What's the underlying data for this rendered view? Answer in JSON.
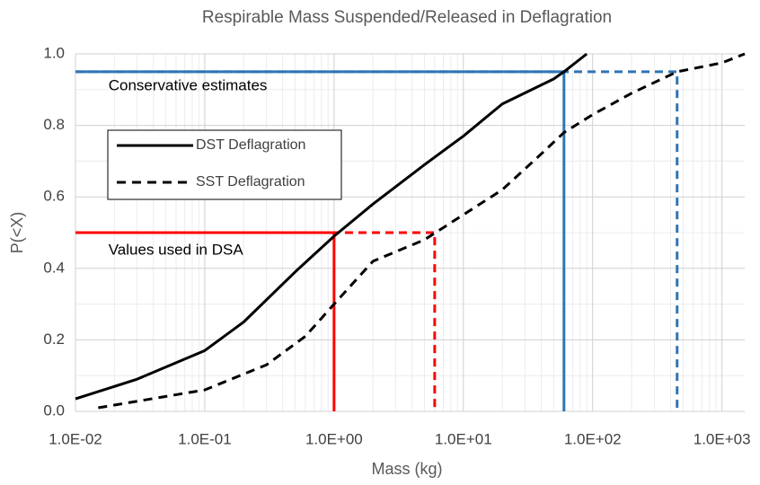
{
  "chart_data": {
    "type": "line",
    "title": "Respirable Mass Suspended/Released in Deflagration",
    "xlabel": "Mass (kg)",
    "ylabel": "P(<X)",
    "xscale": "log",
    "grid": true,
    "xlim": [
      0.01,
      1500
    ],
    "ylim": [
      0,
      1
    ],
    "xticks": [
      {
        "value": 0.01,
        "label": "1.0E-02"
      },
      {
        "value": 0.1,
        "label": "1.0E-01"
      },
      {
        "value": 1,
        "label": "1.0E+00"
      },
      {
        "value": 10,
        "label": "1.0E+01"
      },
      {
        "value": 100,
        "label": "1.0E+02"
      },
      {
        "value": 1000,
        "label": "1.0E+03"
      }
    ],
    "yticks": [
      {
        "value": 0,
        "label": "0.0"
      },
      {
        "value": 0.2,
        "label": "0.2"
      },
      {
        "value": 0.4,
        "label": "0.4"
      },
      {
        "value": 0.6,
        "label": "0.6"
      },
      {
        "value": 0.8,
        "label": "0.8"
      },
      {
        "value": 1,
        "label": "1.0"
      }
    ],
    "series": [
      {
        "name": "DST Deflagration",
        "color": "#000000",
        "style": "solid",
        "x": [
          0.01,
          0.03,
          0.1,
          0.2,
          0.5,
          1,
          2,
          5,
          10,
          20,
          50,
          60,
          90
        ],
        "values": [
          0.035,
          0.09,
          0.17,
          0.25,
          0.39,
          0.49,
          0.58,
          0.69,
          0.77,
          0.86,
          0.93,
          0.95,
          1.0
        ]
      },
      {
        "name": "SST Deflagration",
        "color": "#000000",
        "style": "dashed",
        "x": [
          0.015,
          0.1,
          0.3,
          0.6,
          1,
          2,
          5,
          10,
          20,
          40,
          60,
          100,
          200,
          450,
          1000,
          1500
        ],
        "values": [
          0.01,
          0.06,
          0.13,
          0.21,
          0.3,
          0.42,
          0.48,
          0.55,
          0.62,
          0.72,
          0.78,
          0.83,
          0.89,
          0.95,
          0.975,
          1.0
        ]
      }
    ],
    "reference_lines": [
      {
        "x": 1,
        "y": 0.5,
        "color": "#ff0000",
        "style": "solid"
      },
      {
        "x": 6,
        "y": 0.5,
        "color": "#ff0000",
        "style": "dashed"
      },
      {
        "x": 60,
        "y": 0.95,
        "color": "#2e75b6",
        "style": "solid"
      },
      {
        "x": 450,
        "y": 0.95,
        "color": "#2e75b6",
        "style": "dashed"
      }
    ],
    "annotations": [
      {
        "text": "Conservative estimates",
        "x": 0.018,
        "y": 0.91
      },
      {
        "text": "Values used in DSA",
        "x": 0.018,
        "y": 0.45
      }
    ]
  }
}
